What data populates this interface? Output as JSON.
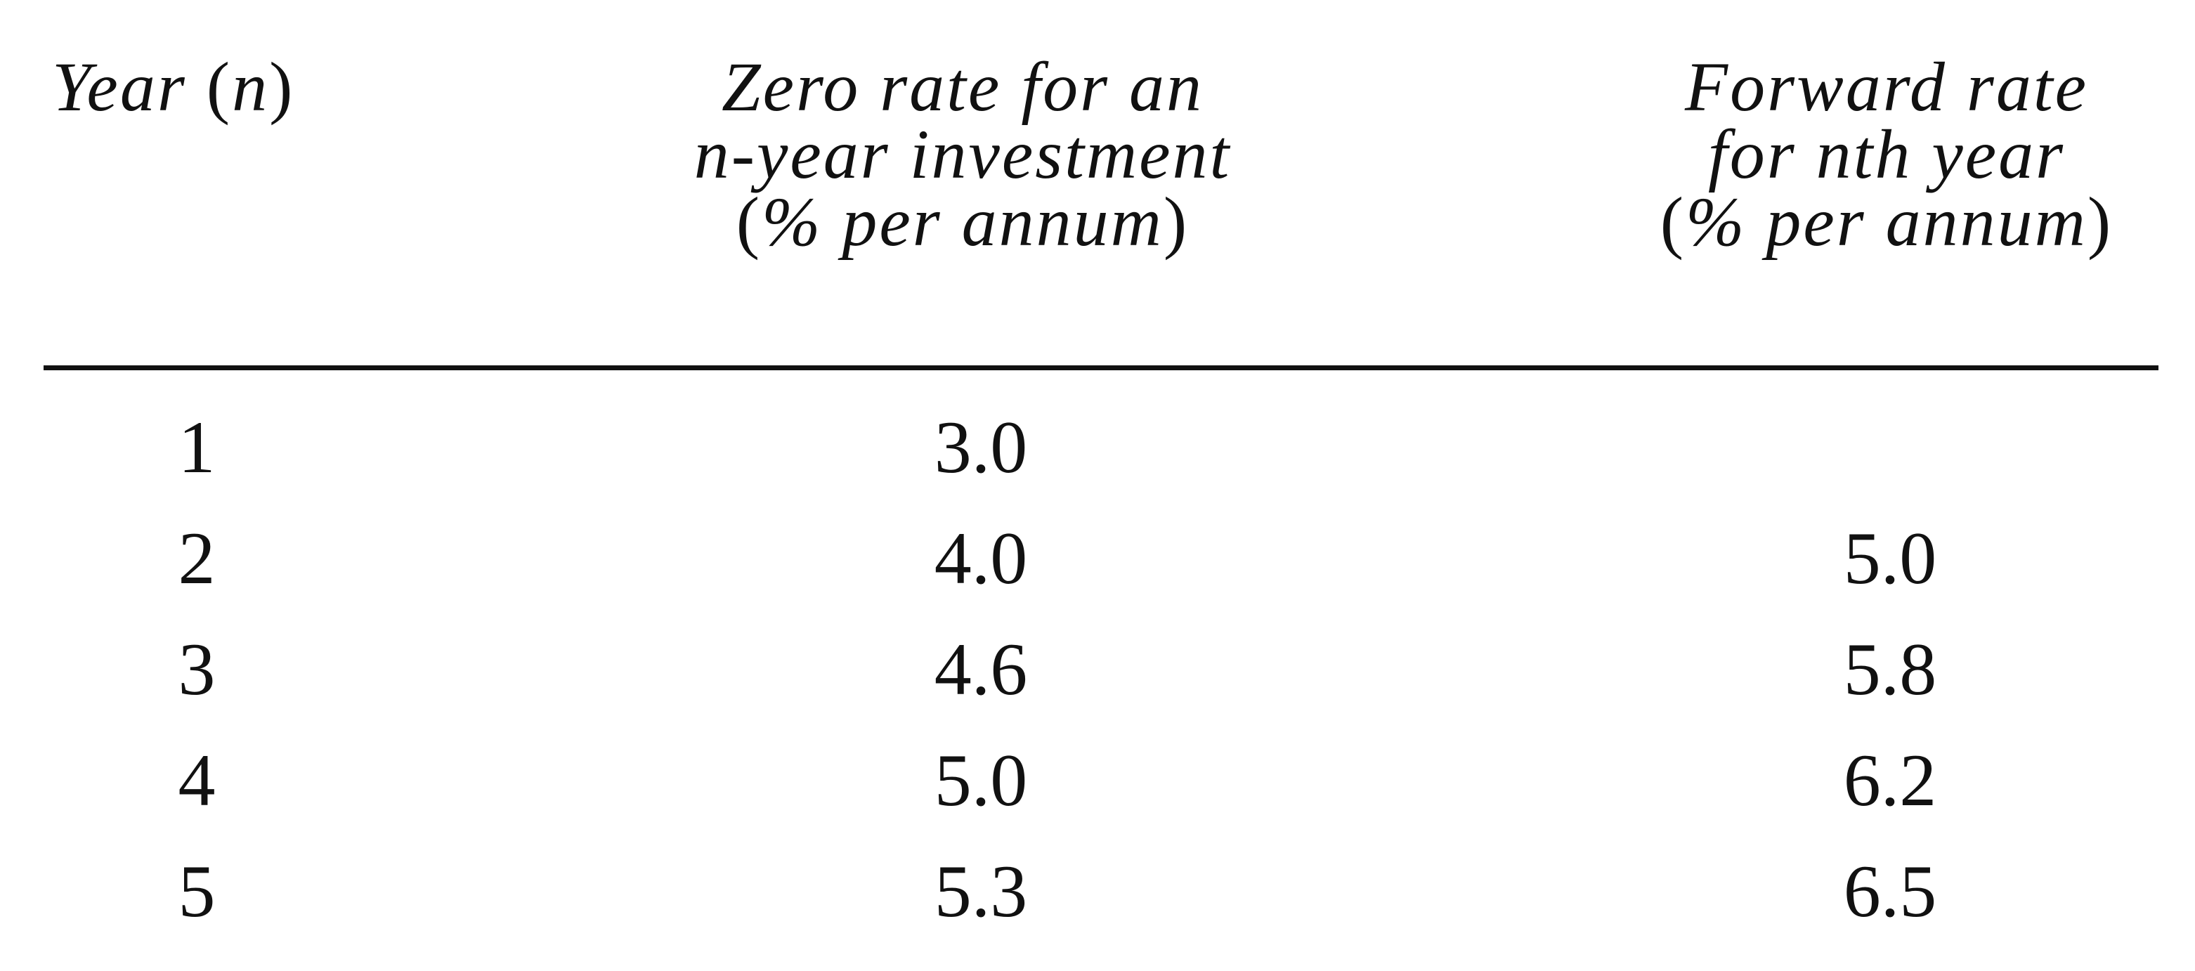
{
  "table": {
    "headers": {
      "year": {
        "italic": "Year ",
        "paren_open": "(",
        "var": "n",
        "paren_close": ")"
      },
      "zero_rate": {
        "line1": "Zero rate for an",
        "line2_var": "n",
        "line2_rest": "-year investment",
        "line3_open": "(",
        "line3_text": "% per annum",
        "line3_close": ")"
      },
      "forward_rate": {
        "line1": "Forward rate",
        "line2": "for nth year",
        "line3_open": "(",
        "line3_text": "% per annum",
        "line3_close": ")"
      }
    },
    "rows": [
      {
        "year": "1",
        "zero_rate": "3.0",
        "forward_rate": ""
      },
      {
        "year": "2",
        "zero_rate": "4.0",
        "forward_rate": "5.0"
      },
      {
        "year": "3",
        "zero_rate": "4.6",
        "forward_rate": "5.8"
      },
      {
        "year": "4",
        "zero_rate": "5.0",
        "forward_rate": "6.2"
      },
      {
        "year": "5",
        "zero_rate": "5.3",
        "forward_rate": "6.5"
      }
    ]
  }
}
